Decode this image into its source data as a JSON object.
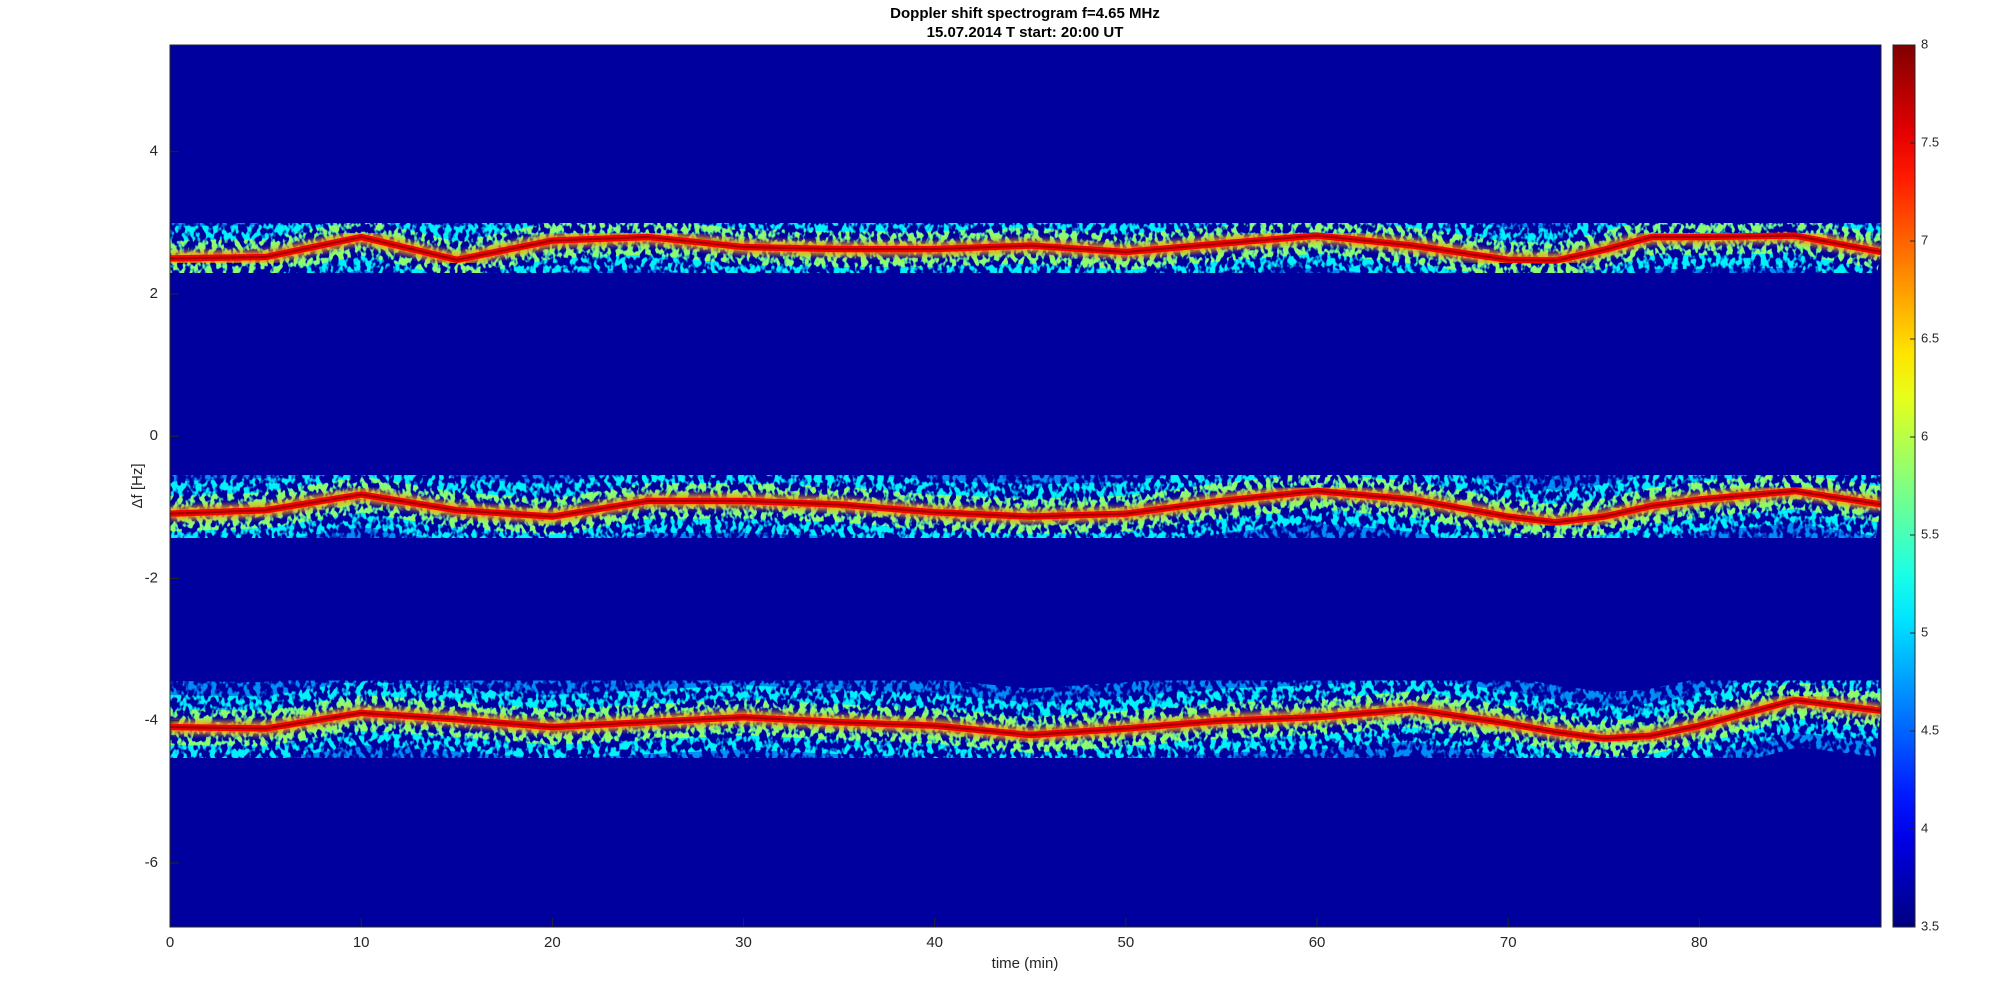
{
  "chart_data": {
    "type": "spectrogram",
    "title": "Doppler shift spectrogram f=4.65 MHz",
    "subtitle": "15.07.2014   T start: 20:00 UT",
    "xlabel": "time (min)",
    "ylabel": "Δf [Hz]",
    "colormap": "jet",
    "x": [
      0,
      5,
      10,
      15,
      20,
      25,
      30,
      35,
      40,
      45,
      50,
      55,
      60,
      65,
      70,
      72.5,
      75,
      77.5,
      80,
      85,
      89.5
    ],
    "series": [
      {
        "values": [
          2.5,
          2.52,
          2.8,
          2.48,
          2.75,
          2.8,
          2.66,
          2.63,
          2.63,
          2.68,
          2.59,
          2.71,
          2.82,
          2.68,
          2.48,
          2.47,
          2.62,
          2.8,
          2.8,
          2.82,
          2.59
        ]
      },
      {
        "values": [
          -1.09,
          -1.04,
          -0.82,
          -1.04,
          -1.13,
          -0.91,
          -0.91,
          -0.96,
          -1.07,
          -1.13,
          -1.09,
          -0.91,
          -0.77,
          -0.89,
          -1.13,
          -1.21,
          -1.13,
          -0.98,
          -0.89,
          -0.77,
          -0.96
        ]
      },
      {
        "values": [
          -4.09,
          -4.11,
          -3.89,
          -3.98,
          -4.09,
          -4.02,
          -3.95,
          -4.02,
          -4.07,
          -4.2,
          -4.11,
          -4.0,
          -3.95,
          -3.84,
          -4.04,
          -4.16,
          -4.25,
          -4.21,
          -4.07,
          -3.71,
          -3.86
        ]
      }
    ],
    "xlim": [
      0,
      89.5
    ],
    "ylim": [
      -6.9,
      5.5
    ],
    "xticks": [
      0,
      10,
      20,
      30,
      40,
      50,
      60,
      70,
      80
    ],
    "yticks": [
      -6,
      -4,
      -2,
      0,
      2,
      4
    ],
    "clim": [
      3.5,
      8
    ],
    "cticks": [
      3.5,
      4,
      4.5,
      5,
      5.5,
      6,
      6.5,
      7,
      7.5,
      8
    ]
  }
}
